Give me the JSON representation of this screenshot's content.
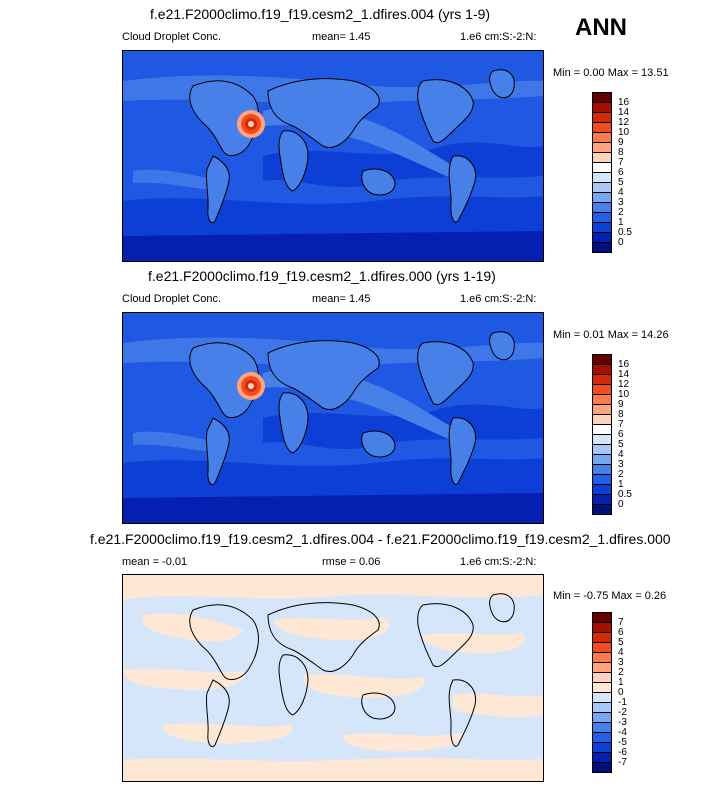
{
  "season": "ANN",
  "panels": [
    {
      "title": "f.e21.F2000climo.f19_f19.cesm2_1.dfires.004 (yrs 1-9)",
      "variable": "Cloud Droplet Conc.",
      "stat": "mean=   1.45",
      "units": "1.e6 cm:S:-2:N:",
      "minmax": "Min =  0.00 Max =  13.51",
      "colorbar": [
        "16",
        "14",
        "12",
        "10",
        "9",
        "8",
        "7",
        "6",
        "5",
        "4",
        "3",
        "2",
        "1",
        "0.5",
        "0"
      ]
    },
    {
      "title": "f.e21.F2000climo.f19_f19.cesm2_1.dfires.000 (yrs 1-19)",
      "variable": "Cloud Droplet Conc.",
      "stat": "mean=   1.45",
      "units": "1.e6 cm:S:-2:N:",
      "minmax": "Min =  0.01 Max =  14.26",
      "colorbar": [
        "16",
        "14",
        "12",
        "10",
        "9",
        "8",
        "7",
        "6",
        "5",
        "4",
        "3",
        "2",
        "1",
        "0.5",
        "0"
      ]
    },
    {
      "title": "f.e21.F2000climo.f19_f19.cesm2_1.dfires.004 - f.e21.F2000climo.f19_f19.cesm2_1.dfires.000",
      "stat": "mean =  -0.01",
      "rmse": "rmse =  0.06",
      "units": "1.e6 cm:S:-2:N:",
      "minmax": "Min =  -0.75 Max =   0.26",
      "colorbar": [
        "7",
        "6",
        "5",
        "4",
        "3",
        "2",
        "1",
        "0",
        "-1",
        "-2",
        "-3",
        "-4",
        "-5",
        "-6",
        "-7"
      ]
    }
  ],
  "colors": {
    "abs_scale": [
      "#650000",
      "#a50f00",
      "#d42a0a",
      "#f24b1f",
      "#fb7a4e",
      "#fda47f",
      "#fdd3bd",
      "#ffffff",
      "#d6e6fa",
      "#a7c8f5",
      "#75a6ee",
      "#4880ea",
      "#235ee6",
      "#0d3fd7",
      "#0520b0",
      "#000f7a"
    ],
    "diff_scale": [
      "#650000",
      "#a50f00",
      "#d42a0a",
      "#f24b1f",
      "#fb7a4e",
      "#fda47f",
      "#fdd3bd",
      "#ffe7d6",
      "#d6e6fa",
      "#a7c8f5",
      "#75a6ee",
      "#4880ea",
      "#235ee6",
      "#0d3fd7",
      "#0520b0",
      "#000f7a"
    ]
  }
}
